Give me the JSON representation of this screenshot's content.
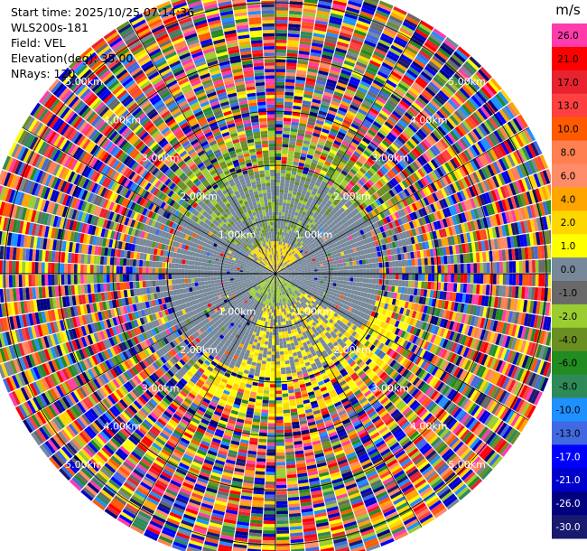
{
  "info": {
    "start_time": "Start time: 2025/10/25 07:14:36",
    "station": "WLS200s-181",
    "field": "Field: VEL",
    "elevation": "Elevation(deg): 35.00",
    "nrays": "NRays: 120"
  },
  "chart_data": {
    "type": "heatmap",
    "projection": "polar PPI",
    "field": "VEL",
    "nrays": 120,
    "range_rings_km": [
      1.0,
      2.0,
      3.0,
      4.0,
      5.0
    ],
    "ring_labels": [
      "1.00km",
      "2.00km",
      "3.00km",
      "4.00km",
      "5.00km"
    ],
    "max_range_km": 5.4,
    "colorbar": {
      "unit": "m/s",
      "ticks": [
        "26.0",
        "21.0",
        "17.0",
        "13.0",
        "10.0",
        "8.0",
        "6.0",
        "4.0",
        "2.0",
        "1.0",
        "0.0",
        "-1.0",
        "-2.0",
        "-4.0",
        "-6.0",
        "-8.0",
        "-10.0",
        "-13.0",
        "-17.0",
        "-21.0",
        "-26.0",
        "-30.0"
      ],
      "colors": [
        "#ff3cac",
        "#ff0000",
        "#e8232f",
        "#ff4040",
        "#ff5a00",
        "#ff7f50",
        "#ff8c69",
        "#ffa500",
        "#ffd700",
        "#ffff00",
        "#778899",
        "#696969",
        "#9acd32",
        "#6b8e23",
        "#228b22",
        "#2e8b57",
        "#1e90ff",
        "#4169e1",
        "#0000ff",
        "#0000cd",
        "#000080",
        "#191970"
      ]
    }
  }
}
